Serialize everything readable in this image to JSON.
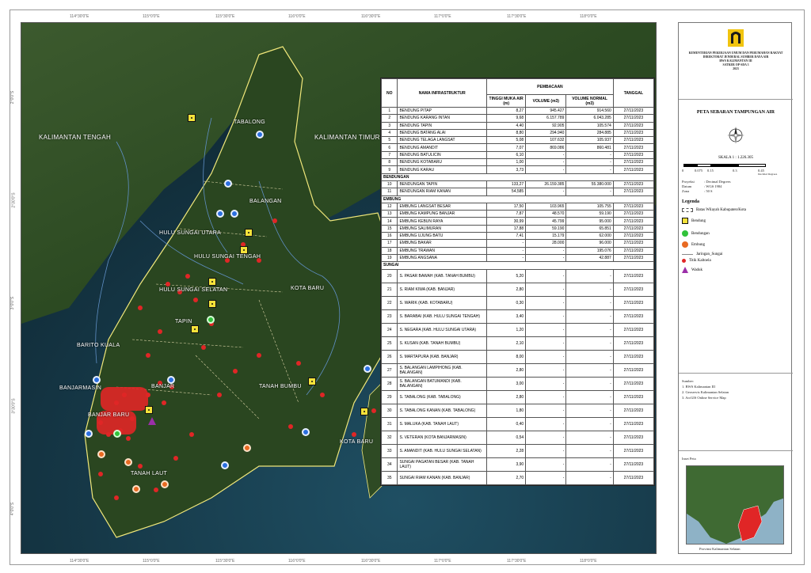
{
  "coords_top": [
    "114°30'0\"E",
    "115°0'0\"E",
    "115°30'0\"E",
    "116°0'0\"E",
    "116°30'0\"E",
    "117°0'0\"E",
    "117°30'0\"E",
    "118°0'0\"E"
  ],
  "coords_bottom": [
    "114°30'0\"E",
    "115°0'0\"E",
    "115°30'0\"E",
    "116°0'0\"E",
    "116°30'0\"E",
    "117°0'0\"E",
    "117°30'0\"E",
    "118°0'0\"E"
  ],
  "coords_left": [
    "2°0'0\"S",
    "2°30'0\"S",
    "3°0'0\"S",
    "3°30'0\"S",
    "4°0'0\"S"
  ],
  "map_labels": {
    "kalteng": "KALIMANTAN TENGAH",
    "kaltim": "KALIMANTAN TIMUR",
    "tabalong": "TABALONG",
    "balangan": "BALANGAN",
    "hsu": "HULU SUNGAI UTARA",
    "hst": "HULU SUNGAI TENGAH",
    "hss": "HULU SUNGAI SELATAN",
    "tapin": "TAPIN",
    "kotabaru1": "KOTA BARU",
    "kotabaru2": "KOTA BARU",
    "baritokuala": "BARITO KUALA",
    "banjarmasin": "BANJARMASIN",
    "banjarbaru": "BANJAR BARU",
    "banjar": "BANJAR",
    "tanahbumbu": "TANAH BUMBU",
    "tanahlaut": "TANAH LAUT"
  },
  "table": {
    "headers": {
      "no": "NO",
      "nama": "NAMA INFRASTRUKTUR",
      "pembacaan": "PEMBACAAN",
      "tma": "TINGGI MUKA AIR (m)",
      "volume": "VOLUME (m3)",
      "volnormal": "VOLUME NORMAL (m3)",
      "tanggal": "TANGGAL"
    },
    "sections": [
      "BENDUNGAN",
      "EMBUNG",
      "SUNGAI"
    ],
    "rows": [
      [
        "1",
        "BENDUNG PITAP",
        "8,27",
        "945.427",
        "914.560",
        "27/11/2023"
      ],
      [
        "2",
        "BENDUNG KARANG INTAN",
        "9,68",
        "6.157.789",
        "6.043.285",
        "27/11/2023"
      ],
      [
        "3",
        "BENDUNG TAPIN",
        "4,40",
        "92.905",
        "105.574",
        "27/11/2023"
      ],
      [
        "4",
        "BENDUNG BATANG ALAI",
        "8,80",
        "294.940",
        "284.885",
        "27/11/2023"
      ],
      [
        "5",
        "BENDUNG TELAGA LANGSAT",
        "5,08",
        "107.632",
        "105.937",
        "27/11/2023"
      ],
      [
        "6",
        "BENDUNG AMANDIT",
        "7,07",
        "869.086",
        "860.481",
        "27/11/2023"
      ],
      [
        "7",
        "BENDUNG BATULICIN",
        "6,10",
        "-",
        "-",
        "27/11/2023"
      ],
      [
        "8",
        "BENDUNG KOTABARU",
        "1,00",
        "-",
        "-",
        "27/11/2023"
      ],
      [
        "9",
        "BENDUNG KARAU",
        "3,73",
        "-",
        "-",
        "27/11/2023"
      ],
      [
        "10",
        "BENDUNGAN TAPIN",
        "133,27",
        "26.159.385",
        "55.380.000",
        "27/11/2023"
      ],
      [
        "11",
        "BENDUNGAN RIAM KANAN",
        "54,585",
        "-",
        "-",
        "27/11/2023"
      ],
      [
        "12",
        "EMBUNG LANGSAT BESAR",
        "17,50",
        "103.965",
        "105.755",
        "27/11/2023"
      ],
      [
        "13",
        "EMBUNG KAMPUNG BANJAR",
        "7,87",
        "48.570",
        "59.190",
        "27/11/2023"
      ],
      [
        "14",
        "EMBUNG KEBUN RAYA",
        "30,99",
        "45.799",
        "95.000",
        "27/11/2023"
      ],
      [
        "15",
        "EMBUNG SALIMURAN",
        "17,88",
        "59.190",
        "65.851",
        "27/11/2023"
      ],
      [
        "16",
        "EMBUNG UJUNG BATU",
        "7,41",
        "15.179",
        "62.000",
        "27/11/2023"
      ],
      [
        "17",
        "EMBUNG BAKAR",
        "-",
        "28.000",
        "96.000",
        "27/11/2023"
      ],
      [
        "18",
        "EMBUNG TRAWAN",
        "-",
        "-",
        "195.076",
        "27/11/2023"
      ],
      [
        "19",
        "EMBUNG ANGSANA",
        "-",
        "-",
        "42.887",
        "27/11/2023"
      ],
      [
        "20",
        "S. PASAR BAWAH (KAB. TANAH BUMBU)",
        "5,20",
        "-",
        "-",
        "27/11/2023"
      ],
      [
        "21",
        "S. RIAM KIWA (KAB. BANJAR)",
        "2,80",
        "-",
        "-",
        "27/11/2023"
      ],
      [
        "22",
        "S. WARIK (KAB. KOTABARU)",
        "0,30",
        "-",
        "-",
        "27/11/2023"
      ],
      [
        "23",
        "S. BARABAI (KAB. HULU SUNGAI TENGAH)",
        "3,40",
        "-",
        "-",
        "27/11/2023"
      ],
      [
        "24",
        "S. NEGARA (KAB. HULU SUNGAI UTARA)",
        "1,20",
        "-",
        "-",
        "27/11/2023"
      ],
      [
        "25",
        "S. KUSAN (KAB. TANAH BUMBU)",
        "2,10",
        "-",
        "-",
        "27/11/2023"
      ],
      [
        "26",
        "S. MARTAPURA (KAB. BANJAR)",
        "8,00",
        "-",
        "-",
        "27/11/2023"
      ],
      [
        "27",
        "S. BALANGAN LAMPIHONG (KAB. BALANGAN)",
        "2,80",
        "-",
        "-",
        "27/11/2023"
      ],
      [
        "28",
        "S. BALANGAN BATUMANDI (KAB. BALANGAN)",
        "3,00",
        "-",
        "-",
        "27/11/2023"
      ],
      [
        "29",
        "S. TABALONG (KAB. TABALONG)",
        "2,80",
        "-",
        "-",
        "27/11/2023"
      ],
      [
        "30",
        "S. TABALONG KANAN (KAB. TABALONG)",
        "1,80",
        "-",
        "-",
        "27/11/2023"
      ],
      [
        "31",
        "S. MALUKA (KAB. TANAH LAUT)",
        "0,40",
        "-",
        "-",
        "27/11/2023"
      ],
      [
        "32",
        "S. VETERAN (KOTA BANJARMASIN)",
        "0,54",
        "-",
        "-",
        "27/11/2023"
      ],
      [
        "33",
        "S. AMANDIT (KAB. HULU SUNGAI SELATAN)",
        "2,28",
        "-",
        "-",
        "27/11/2023"
      ],
      [
        "34",
        "SUNGAI PAGATAN BESAR (KAB. TANAH LAUT)",
        "3,90",
        "-",
        "-",
        "27/11/2023"
      ],
      [
        "35",
        "SUNGAI RIAM KANAN (KAB. BANJAR)",
        "2,70",
        "-",
        "-",
        "27/11/2023"
      ]
    ]
  },
  "panel": {
    "org": [
      "KEMENTERIAN PEKERJAAN UMUM DAN PERUMAHAN RAKYAT",
      "DIREKTORAT JENDERAL SUMBER DAYA AIR",
      "BWS KALIMANTAN III",
      "SATKER OP-SDA 3",
      "2023"
    ],
    "title": "PETA SEBARAN TAMPUNGAN AIR",
    "skala": "SKALA 1 : 1.226.305",
    "scale_ticks": [
      "0",
      "0.075",
      "0.15",
      "0.3",
      "0.45"
    ],
    "scale_unit": "Decimal Degrees",
    "proj": [
      [
        "Proyeksi",
        ": Decimal Degrees"
      ],
      [
        "Datum",
        ": WGS 1984"
      ],
      [
        "Zona",
        ": 50 S"
      ]
    ],
    "legend_title": "Legenda",
    "legend": [
      "Batas Wilayah Kabupaten/Kota",
      "Bendung",
      "Bendungan",
      "Embung",
      "Jaringan_Sungai",
      "Titik Kaltoela",
      "Waduk"
    ],
    "sumber_title": "Sumber:",
    "sumber": [
      "1. BWS Kalimantan III",
      "2. Geoservis Kalimantan Selatan",
      "3. ArcGIS Online Service Map"
    ],
    "inset_title": "Inset Peta",
    "inset_caption": "Provinsi Kalimantan Selatan"
  },
  "colors": {
    "bendung": "#f4e23a",
    "bendungan": "#31c23a",
    "embung": "#e86a22",
    "sungai": "#2b6fe0",
    "waduk": "#9b2fa8"
  }
}
